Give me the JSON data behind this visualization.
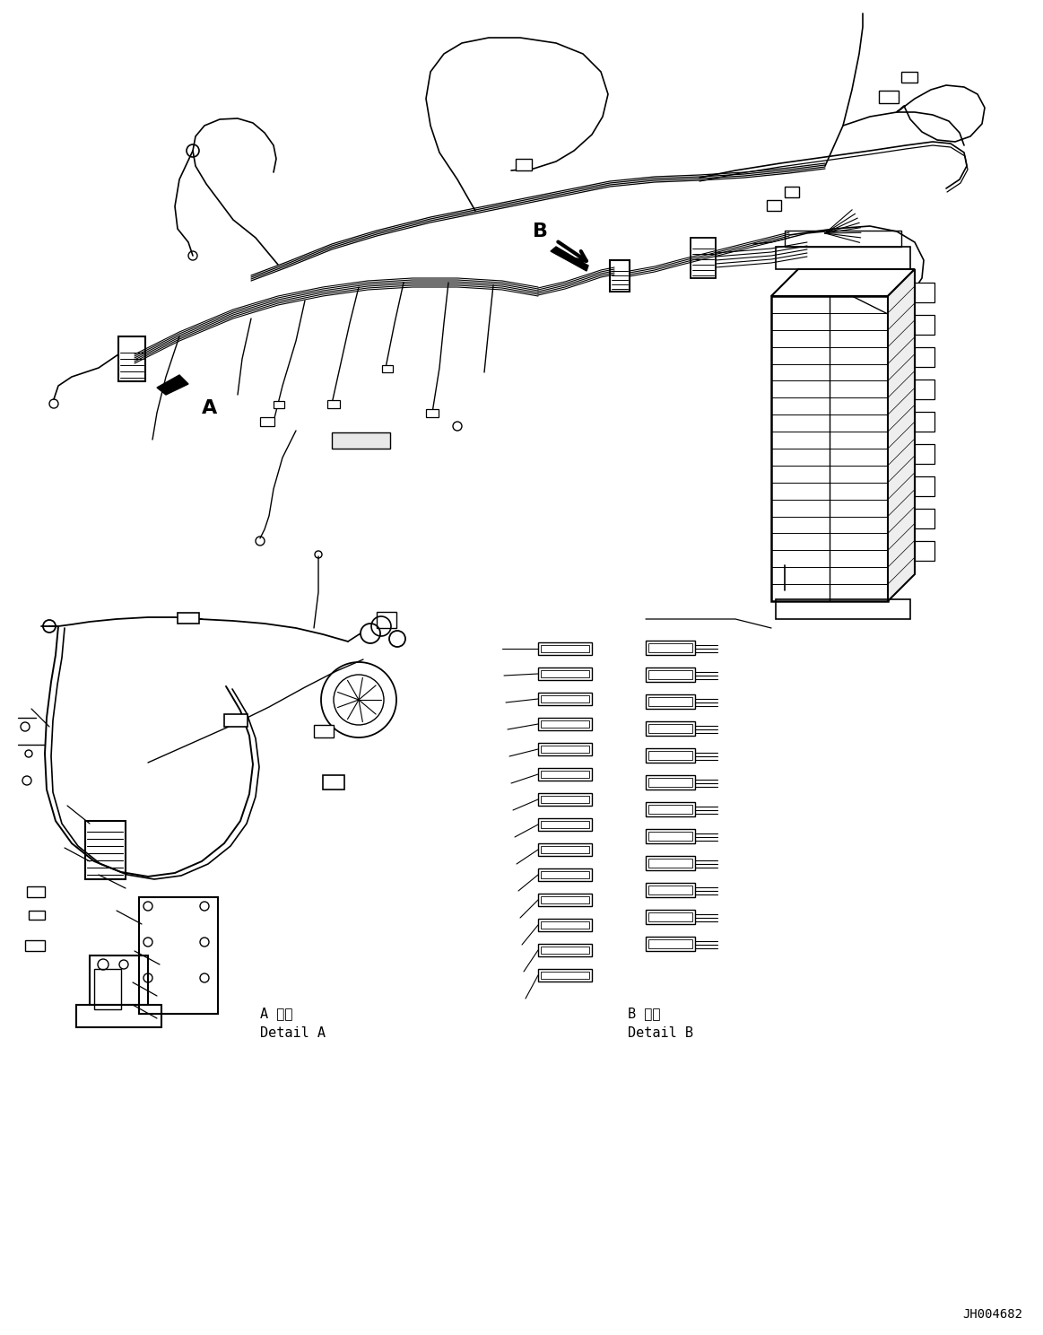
{
  "figure_id": "JH004682",
  "background_color": "#ffffff",
  "line_color": "#000000",
  "label_A": "A",
  "label_B": "B",
  "detail_A_jp": "A 詳細",
  "detail_A_en": "Detail A",
  "detail_B_jp": "B 詳細",
  "detail_B_en": "Detail B",
  "fig_width": 11.63,
  "fig_height": 14.88,
  "dpi": 100
}
